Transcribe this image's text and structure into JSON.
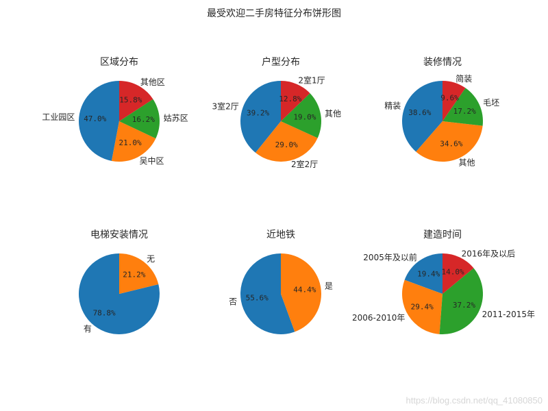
{
  "figure": {
    "title": "最受欢迎二手房特征分布饼形图",
    "watermark": "https://blog.csdn.net/qq_41080850"
  },
  "chart_data": [
    {
      "type": "pie",
      "title": "区域分布",
      "start_angle_deg": 90,
      "slices": [
        {
          "label": "工业园区",
          "value": 47.0,
          "pct": "47.0%",
          "color": "#1f77b4"
        },
        {
          "label": "吴中区",
          "value": 21.0,
          "pct": "21.0%",
          "color": "#ff7f0e"
        },
        {
          "label": "姑苏区",
          "value": 16.2,
          "pct": "16.2%",
          "color": "#2ca02c"
        },
        {
          "label": "其他区",
          "value": 15.8,
          "pct": "15.8%",
          "color": "#d62728"
        }
      ]
    },
    {
      "type": "pie",
      "title": "户型分布",
      "start_angle_deg": 90,
      "slices": [
        {
          "label": "3室2厅",
          "value": 39.2,
          "pct": "39.2%",
          "color": "#1f77b4"
        },
        {
          "label": "2室2厅",
          "value": 29.0,
          "pct": "29.0%",
          "color": "#ff7f0e"
        },
        {
          "label": "其他",
          "value": 19.0,
          "pct": "19.0%",
          "color": "#2ca02c"
        },
        {
          "label": "2室1厅",
          "value": 12.8,
          "pct": "12.8%",
          "color": "#d62728"
        }
      ]
    },
    {
      "type": "pie",
      "title": "装修情况",
      "start_angle_deg": 90,
      "slices": [
        {
          "label": "精装",
          "value": 38.6,
          "pct": "38.6%",
          "color": "#1f77b4"
        },
        {
          "label": "其他",
          "value": 34.6,
          "pct": "34.6%",
          "color": "#ff7f0e"
        },
        {
          "label": "毛坯",
          "value": 17.2,
          "pct": "17.2%",
          "color": "#2ca02c"
        },
        {
          "label": "简装",
          "value": 9.6,
          "pct": "9.6%",
          "color": "#d62728"
        }
      ]
    },
    {
      "type": "pie",
      "title": "电梯安装情况",
      "start_angle_deg": 90,
      "slices": [
        {
          "label": "有",
          "value": 78.8,
          "pct": "78.8%",
          "color": "#1f77b4"
        },
        {
          "label": "无",
          "value": 21.2,
          "pct": "21.2%",
          "color": "#ff7f0e"
        }
      ]
    },
    {
      "type": "pie",
      "title": "近地铁",
      "start_angle_deg": 90,
      "slices": [
        {
          "label": "否",
          "value": 55.6,
          "pct": "55.6%",
          "color": "#1f77b4"
        },
        {
          "label": "是",
          "value": 44.4,
          "pct": "44.4%",
          "color": "#ff7f0e"
        }
      ]
    },
    {
      "type": "pie",
      "title": "建造时间",
      "start_angle_deg": 90,
      "slices": [
        {
          "label": "2005年及以前",
          "value": 19.4,
          "pct": "19.4%",
          "color": "#1f77b4"
        },
        {
          "label": "2006-2010年",
          "value": 29.4,
          "pct": "29.4%",
          "color": "#ff7f0e"
        },
        {
          "label": "2011-2015年",
          "value": 37.2,
          "pct": "37.2%",
          "color": "#2ca02c"
        },
        {
          "label": "2016年及以后",
          "value": 14.0,
          "pct": "14.0%",
          "color": "#d62728"
        }
      ]
    }
  ]
}
